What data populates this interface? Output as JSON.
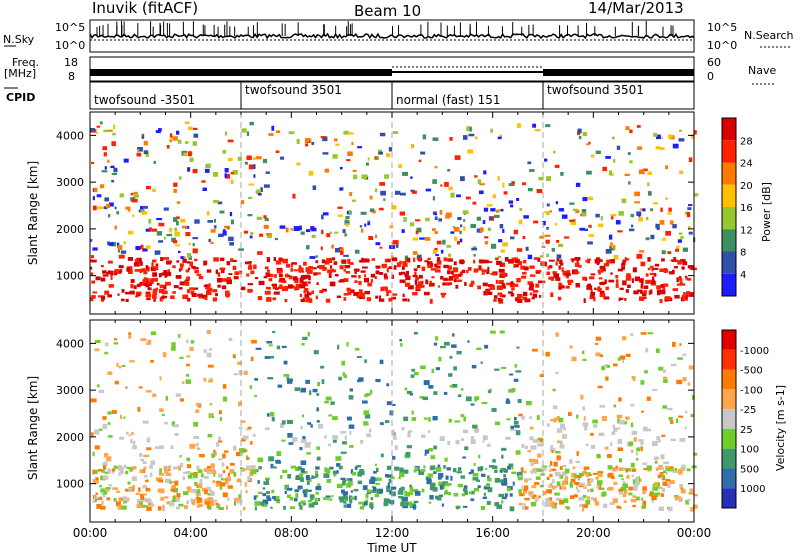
{
  "header": {
    "station": "Inuvik (fitACF)",
    "beam": "Beam 10",
    "date": "14/Mar/2013"
  },
  "panels": {
    "nsky": {
      "label": "N.Sky",
      "tick_top": "10^5",
      "tick_bottom": "10^0",
      "right_label": "N.Search",
      "right_tick_top": "10^5",
      "right_tick_bottom": "10^0"
    },
    "freq": {
      "label_1": "Freq.",
      "label_2": "[MHz]",
      "tick_top": "18",
      "tick_bottom": "8",
      "right_label": "Nave",
      "right_tick_top": "60",
      "right_tick_bottom": "0"
    },
    "cpid": {
      "label": "CPID"
    }
  },
  "chart_data": [
    {
      "type": "table",
      "title": "CPID",
      "segments": [
        {
          "start": "00:00",
          "end": "06:00",
          "label": "twofsound -3501"
        },
        {
          "start": "06:00",
          "end": "12:00",
          "label": "twofsound 3501"
        },
        {
          "start": "12:00",
          "end": "18:00",
          "label": "normal (fast) 151"
        },
        {
          "start": "18:00",
          "end": "24:00",
          "label": "twofsound 3501"
        }
      ]
    },
    {
      "type": "heatmap",
      "title": "Power [dB]",
      "xlabel": "Time UT",
      "ylabel": "Slant Range [km]",
      "x_ticks": [
        "00:00",
        "04:00",
        "08:00",
        "12:00",
        "16:00",
        "20:00",
        "00:00"
      ],
      "xlim": [
        0,
        24
      ],
      "ylim": [
        180,
        4500
      ],
      "y_ticks": [
        1000,
        2000,
        3000,
        4000
      ],
      "colorbar_label": "Power [dB]",
      "colorbar_ticks": [
        "4",
        "8",
        "12",
        "16",
        "20",
        "24",
        "28"
      ],
      "colorbar_colors": [
        "#1c1cff",
        "#2f4fa8",
        "#3e8f5e",
        "#95c82d",
        "#ffc000",
        "#ff7a00",
        "#ff2000",
        "#d80000"
      ]
    },
    {
      "type": "heatmap",
      "title": "Velocity [m s^-1]",
      "xlabel": "Time UT",
      "ylabel": "Slant Range [km]",
      "x_ticks": [
        "00:00",
        "04:00",
        "08:00",
        "12:00",
        "16:00",
        "20:00",
        "00:00"
      ],
      "xlim": [
        0,
        24
      ],
      "ylim": [
        180,
        4500
      ],
      "y_ticks": [
        1000,
        2000,
        3000,
        4000
      ],
      "colorbar_label": "Velocity [m s-1]",
      "colorbar_ticks": [
        "1000",
        "500",
        "100",
        "25",
        "-25",
        "-100",
        "-500",
        "-1000"
      ],
      "colorbar_colors": [
        "#2530b8",
        "#2e6da8",
        "#3f9a6a",
        "#6fcd2a",
        "#c8c8c8",
        "#ffa64d",
        "#ff7a00",
        "#ff3000",
        "#e00000"
      ]
    }
  ]
}
